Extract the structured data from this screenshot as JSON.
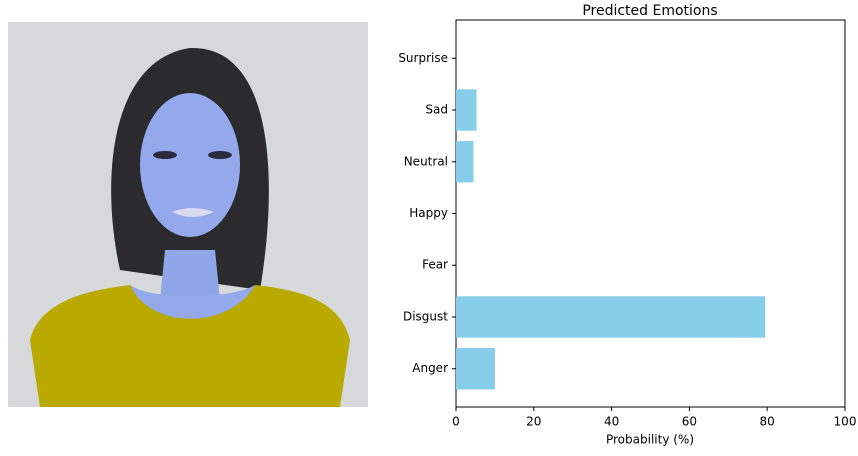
{
  "chart_data": {
    "type": "barh",
    "title": "Predicted Emotions",
    "x_label": "Probability (%)",
    "categories": [
      "Anger",
      "Disgust",
      "Fear",
      "Happy",
      "Neutral",
      "Sad",
      "Surprise"
    ],
    "values": [
      10,
      79.5,
      0,
      0,
      4.5,
      5.3,
      0
    ],
    "color": "#87ceeb",
    "xlim": [
      0,
      100
    ],
    "xticks": [
      0,
      20,
      40,
      60,
      80,
      100
    ]
  }
}
